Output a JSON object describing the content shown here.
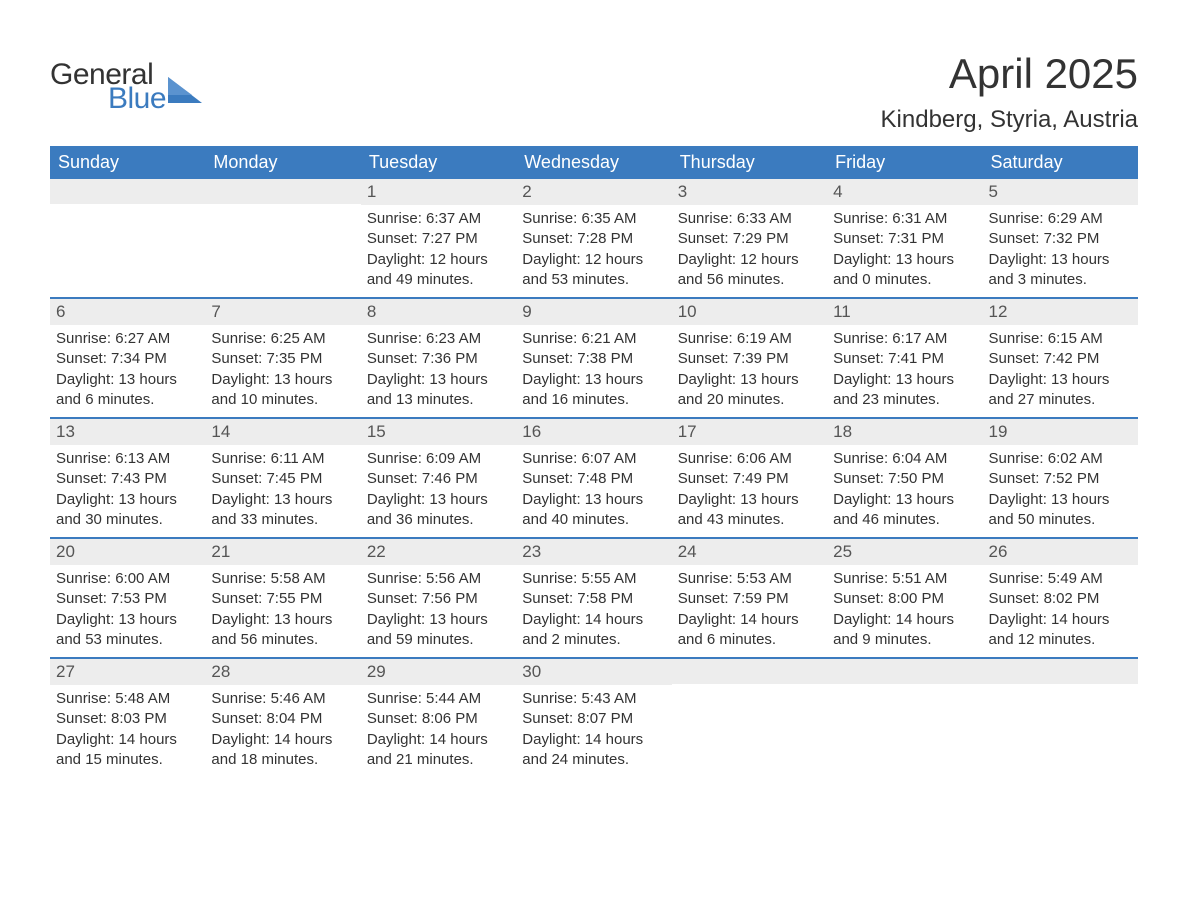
{
  "logo": {
    "text1": "General",
    "text2": "Blue",
    "icon_color": "#3b7bbf"
  },
  "title": "April 2025",
  "location": "Kindberg, Styria, Austria",
  "colors": {
    "header_bg": "#3b7bbf",
    "header_text": "#ffffff",
    "daynum_bg": "#ededed",
    "daynum_text": "#555555",
    "body_text": "#333333",
    "week_border": "#3b7bbf",
    "page_bg": "#ffffff"
  },
  "typography": {
    "title_fontsize": 42,
    "location_fontsize": 24,
    "dow_fontsize": 18,
    "daynum_fontsize": 17,
    "body_fontsize": 15
  },
  "days_of_week": [
    "Sunday",
    "Monday",
    "Tuesday",
    "Wednesday",
    "Thursday",
    "Friday",
    "Saturday"
  ],
  "weeks": [
    [
      {
        "n": "",
        "sunrise": "",
        "sunset": "",
        "daylight": ""
      },
      {
        "n": "",
        "sunrise": "",
        "sunset": "",
        "daylight": ""
      },
      {
        "n": "1",
        "sunrise": "Sunrise: 6:37 AM",
        "sunset": "Sunset: 7:27 PM",
        "daylight": "Daylight: 12 hours and 49 minutes."
      },
      {
        "n": "2",
        "sunrise": "Sunrise: 6:35 AM",
        "sunset": "Sunset: 7:28 PM",
        "daylight": "Daylight: 12 hours and 53 minutes."
      },
      {
        "n": "3",
        "sunrise": "Sunrise: 6:33 AM",
        "sunset": "Sunset: 7:29 PM",
        "daylight": "Daylight: 12 hours and 56 minutes."
      },
      {
        "n": "4",
        "sunrise": "Sunrise: 6:31 AM",
        "sunset": "Sunset: 7:31 PM",
        "daylight": "Daylight: 13 hours and 0 minutes."
      },
      {
        "n": "5",
        "sunrise": "Sunrise: 6:29 AM",
        "sunset": "Sunset: 7:32 PM",
        "daylight": "Daylight: 13 hours and 3 minutes."
      }
    ],
    [
      {
        "n": "6",
        "sunrise": "Sunrise: 6:27 AM",
        "sunset": "Sunset: 7:34 PM",
        "daylight": "Daylight: 13 hours and 6 minutes."
      },
      {
        "n": "7",
        "sunrise": "Sunrise: 6:25 AM",
        "sunset": "Sunset: 7:35 PM",
        "daylight": "Daylight: 13 hours and 10 minutes."
      },
      {
        "n": "8",
        "sunrise": "Sunrise: 6:23 AM",
        "sunset": "Sunset: 7:36 PM",
        "daylight": "Daylight: 13 hours and 13 minutes."
      },
      {
        "n": "9",
        "sunrise": "Sunrise: 6:21 AM",
        "sunset": "Sunset: 7:38 PM",
        "daylight": "Daylight: 13 hours and 16 minutes."
      },
      {
        "n": "10",
        "sunrise": "Sunrise: 6:19 AM",
        "sunset": "Sunset: 7:39 PM",
        "daylight": "Daylight: 13 hours and 20 minutes."
      },
      {
        "n": "11",
        "sunrise": "Sunrise: 6:17 AM",
        "sunset": "Sunset: 7:41 PM",
        "daylight": "Daylight: 13 hours and 23 minutes."
      },
      {
        "n": "12",
        "sunrise": "Sunrise: 6:15 AM",
        "sunset": "Sunset: 7:42 PM",
        "daylight": "Daylight: 13 hours and 27 minutes."
      }
    ],
    [
      {
        "n": "13",
        "sunrise": "Sunrise: 6:13 AM",
        "sunset": "Sunset: 7:43 PM",
        "daylight": "Daylight: 13 hours and 30 minutes."
      },
      {
        "n": "14",
        "sunrise": "Sunrise: 6:11 AM",
        "sunset": "Sunset: 7:45 PM",
        "daylight": "Daylight: 13 hours and 33 minutes."
      },
      {
        "n": "15",
        "sunrise": "Sunrise: 6:09 AM",
        "sunset": "Sunset: 7:46 PM",
        "daylight": "Daylight: 13 hours and 36 minutes."
      },
      {
        "n": "16",
        "sunrise": "Sunrise: 6:07 AM",
        "sunset": "Sunset: 7:48 PM",
        "daylight": "Daylight: 13 hours and 40 minutes."
      },
      {
        "n": "17",
        "sunrise": "Sunrise: 6:06 AM",
        "sunset": "Sunset: 7:49 PM",
        "daylight": "Daylight: 13 hours and 43 minutes."
      },
      {
        "n": "18",
        "sunrise": "Sunrise: 6:04 AM",
        "sunset": "Sunset: 7:50 PM",
        "daylight": "Daylight: 13 hours and 46 minutes."
      },
      {
        "n": "19",
        "sunrise": "Sunrise: 6:02 AM",
        "sunset": "Sunset: 7:52 PM",
        "daylight": "Daylight: 13 hours and 50 minutes."
      }
    ],
    [
      {
        "n": "20",
        "sunrise": "Sunrise: 6:00 AM",
        "sunset": "Sunset: 7:53 PM",
        "daylight": "Daylight: 13 hours and 53 minutes."
      },
      {
        "n": "21",
        "sunrise": "Sunrise: 5:58 AM",
        "sunset": "Sunset: 7:55 PM",
        "daylight": "Daylight: 13 hours and 56 minutes."
      },
      {
        "n": "22",
        "sunrise": "Sunrise: 5:56 AM",
        "sunset": "Sunset: 7:56 PM",
        "daylight": "Daylight: 13 hours and 59 minutes."
      },
      {
        "n": "23",
        "sunrise": "Sunrise: 5:55 AM",
        "sunset": "Sunset: 7:58 PM",
        "daylight": "Daylight: 14 hours and 2 minutes."
      },
      {
        "n": "24",
        "sunrise": "Sunrise: 5:53 AM",
        "sunset": "Sunset: 7:59 PM",
        "daylight": "Daylight: 14 hours and 6 minutes."
      },
      {
        "n": "25",
        "sunrise": "Sunrise: 5:51 AM",
        "sunset": "Sunset: 8:00 PM",
        "daylight": "Daylight: 14 hours and 9 minutes."
      },
      {
        "n": "26",
        "sunrise": "Sunrise: 5:49 AM",
        "sunset": "Sunset: 8:02 PM",
        "daylight": "Daylight: 14 hours and 12 minutes."
      }
    ],
    [
      {
        "n": "27",
        "sunrise": "Sunrise: 5:48 AM",
        "sunset": "Sunset: 8:03 PM",
        "daylight": "Daylight: 14 hours and 15 minutes."
      },
      {
        "n": "28",
        "sunrise": "Sunrise: 5:46 AM",
        "sunset": "Sunset: 8:04 PM",
        "daylight": "Daylight: 14 hours and 18 minutes."
      },
      {
        "n": "29",
        "sunrise": "Sunrise: 5:44 AM",
        "sunset": "Sunset: 8:06 PM",
        "daylight": "Daylight: 14 hours and 21 minutes."
      },
      {
        "n": "30",
        "sunrise": "Sunrise: 5:43 AM",
        "sunset": "Sunset: 8:07 PM",
        "daylight": "Daylight: 14 hours and 24 minutes."
      },
      {
        "n": "",
        "sunrise": "",
        "sunset": "",
        "daylight": ""
      },
      {
        "n": "",
        "sunrise": "",
        "sunset": "",
        "daylight": ""
      },
      {
        "n": "",
        "sunrise": "",
        "sunset": "",
        "daylight": ""
      }
    ]
  ]
}
